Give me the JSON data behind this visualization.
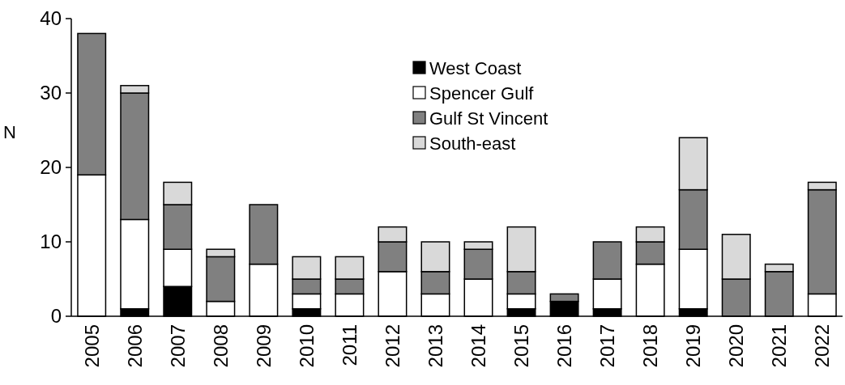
{
  "chart_data": {
    "type": "bar",
    "stacked": true,
    "ylabel": "N",
    "categories": [
      "2005",
      "2006",
      "2007",
      "2008",
      "2009",
      "2010",
      "2011",
      "2012",
      "2013",
      "2014",
      "2015",
      "2016",
      "2017",
      "2018",
      "2019",
      "2020",
      "2021",
      "2022"
    ],
    "series": [
      {
        "name": "West Coast",
        "color": "#000000",
        "values": [
          0,
          1,
          4,
          0,
          0,
          1,
          0,
          0,
          0,
          0,
          1,
          2,
          1,
          0,
          1,
          0,
          0,
          0
        ]
      },
      {
        "name": "Spencer Gulf",
        "color": "#ffffff",
        "values": [
          19,
          12,
          5,
          2,
          7,
          2,
          3,
          6,
          3,
          5,
          2,
          0,
          4,
          7,
          8,
          0,
          0,
          3
        ]
      },
      {
        "name": "Gulf St Vincent",
        "color": "#808080",
        "values": [
          19,
          17,
          6,
          6,
          8,
          2,
          2,
          4,
          3,
          4,
          3,
          1,
          5,
          3,
          8,
          5,
          6,
          14
        ]
      },
      {
        "name": "South-east",
        "color": "#d9d9d9",
        "values": [
          0,
          1,
          3,
          1,
          0,
          3,
          3,
          2,
          4,
          1,
          6,
          0,
          0,
          2,
          7,
          6,
          1,
          1
        ]
      }
    ],
    "ylim": [
      0,
      40
    ],
    "yticks": [
      0,
      10,
      20,
      30,
      40
    ],
    "grid": false,
    "legend": "top right"
  }
}
